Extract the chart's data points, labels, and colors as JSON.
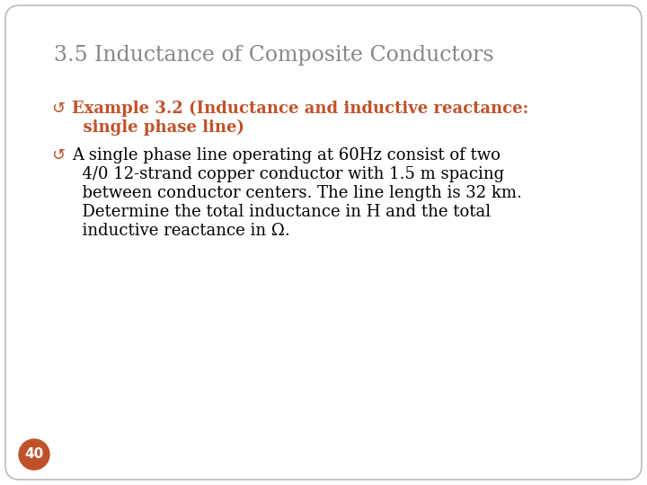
{
  "title": "3.5 Inductance of Composite Conductors",
  "title_color": "#888888",
  "title_fontsize": 17,
  "bullet_color": "#c0522a",
  "bullet1_line1": "Example 3.2 (Inductance and inductive reactance:",
  "bullet1_line2": "  single phase line)",
  "bullet2_lines": [
    "A single phase line operating at 60Hz consist of two",
    "  4/0 12-strand copper conductor with 1.5 m spacing",
    "  between conductor centers. The line length is 32 km.",
    "  Determine the total inductance in H and the total",
    "  inductive reactance in Ω."
  ],
  "page_num": "40",
  "page_num_bg": "#c0522a",
  "page_num_color": "#ffffff",
  "bg_color": "#ffffff",
  "slide_border_color": "#bbbbbb",
  "body_text_color": "#000000",
  "body_fontsize": 13.0,
  "bullet_symbol": "↺",
  "fig_width": 7.2,
  "fig_height": 5.4,
  "dpi": 100
}
